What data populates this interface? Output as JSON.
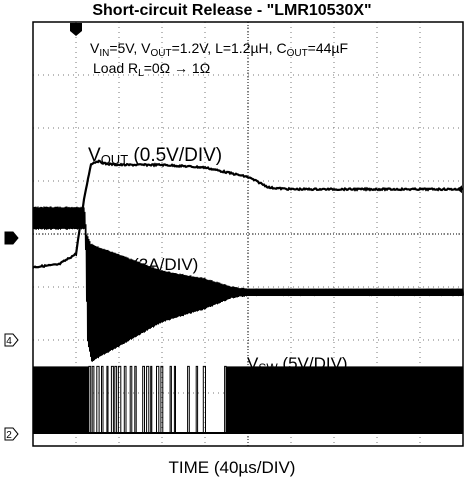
{
  "chart_data": {
    "type": "line",
    "title": "Short-circuit Release - \"LMR10530X\"",
    "xlabel": "TIME (40µs/DIV)",
    "ylabel": "",
    "grid": true,
    "divisions": {
      "x": 10,
      "y": 8
    },
    "conditions": {
      "line1_parts": [
        "V",
        "IN",
        "=5V, V",
        "OUT",
        "=1.2V, L=1.2µH, C",
        "OUT",
        "=44µF"
      ],
      "line2_parts": [
        "Load R",
        "L",
        "=0Ω → 1Ω"
      ]
    },
    "trigger_marker": "T",
    "series": [
      {
        "name_parts": [
          "V",
          "OUT",
          " (0.5V/DIV)"
        ],
        "channel": "1",
        "x_div": [
          0,
          0.6,
          1.0,
          1.2,
          1.35,
          1.5,
          1.7,
          2.0,
          3.0,
          4.0,
          5.0,
          5.5,
          6.0,
          7.0,
          8.0,
          9.0,
          10.0
        ],
        "y_div": [
          -0.55,
          -0.5,
          -0.3,
          0.8,
          1.4,
          1.45,
          1.4,
          1.38,
          1.38,
          1.33,
          1.15,
          0.95,
          0.92,
          0.92,
          0.92,
          0.92,
          0.92
        ]
      },
      {
        "name_parts": [
          "I",
          "L",
          " (2A/DIV)"
        ],
        "channel": "4",
        "settle_level_div": 0.9,
        "envelope_x_div": [
          0,
          1.2,
          1.25,
          1.35,
          2.0,
          3.0,
          4.0,
          4.6,
          5.0,
          10.0
        ],
        "envelope_top_div": [
          2.5,
          2.5,
          2.0,
          1.8,
          1.6,
          1.3,
          1.15,
          1.0,
          0.95,
          0.95
        ],
        "envelope_bottom_div": [
          2.1,
          2.1,
          0.0,
          -0.4,
          -0.1,
          0.35,
          0.6,
          0.8,
          0.85,
          0.85
        ]
      },
      {
        "name_parts": [
          "V",
          "SW",
          " (5V/DIV)"
        ],
        "channel": "2",
        "low_div": 0.0,
        "high_div": 1.2,
        "transition_x_div": [
          1.3,
          4.5
        ]
      }
    ],
    "channel_markers": [
      "1",
      "4",
      "2"
    ]
  }
}
